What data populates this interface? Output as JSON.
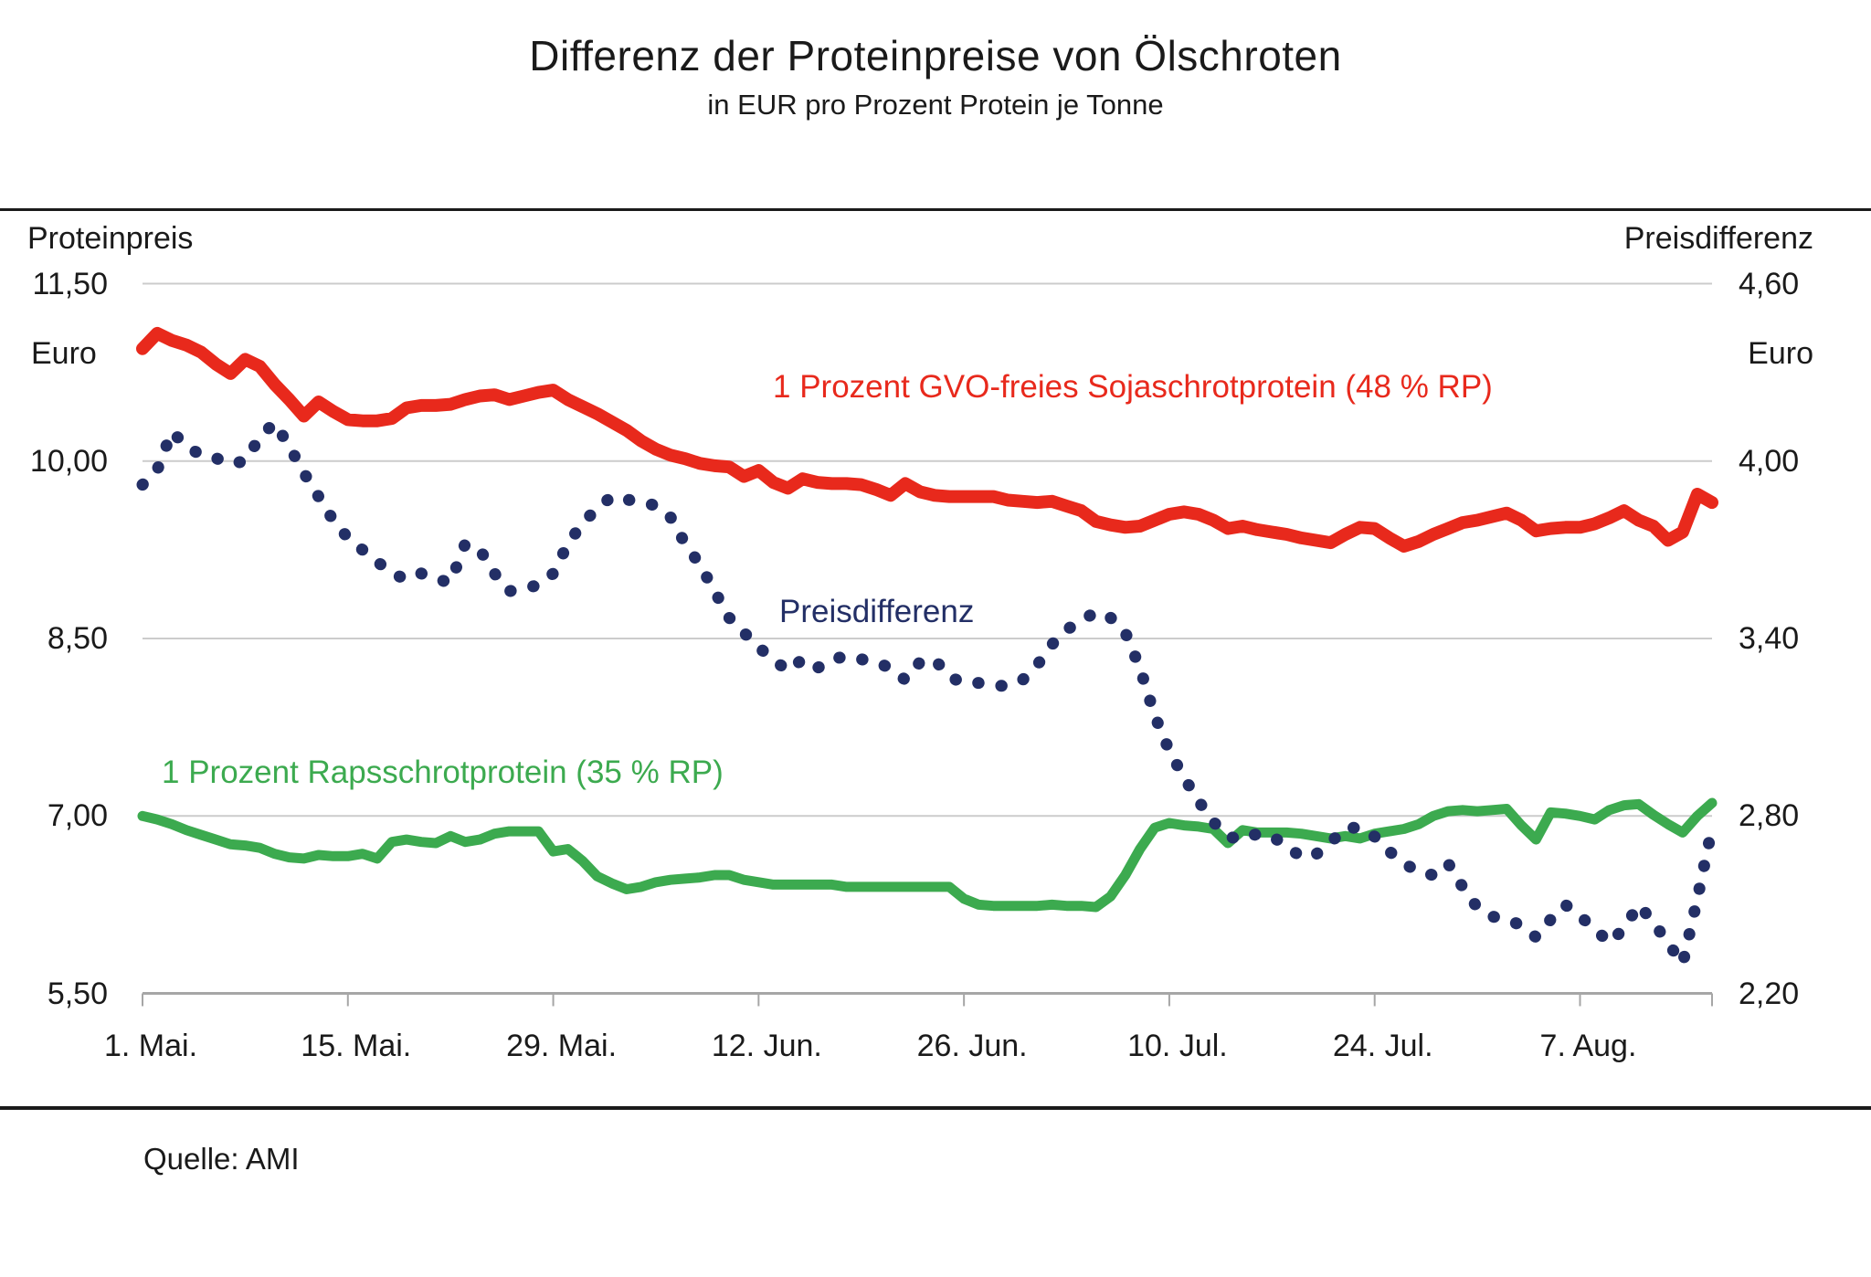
{
  "title": "Differenz der Proteinpreise von Ölschroten",
  "subtitle": "in EUR pro Prozent Protein je Tonne",
  "source": "Quelle: AMI",
  "colors": {
    "soja": "#e8291c",
    "raps": "#3caa4f",
    "diff": "#232f66",
    "grid": "#cccccc",
    "axis": "#a6a6a6",
    "text": "#1a1a1a"
  },
  "chart_data": {
    "type": "line",
    "x_unit": "day",
    "x_range_labels": [
      "1. Mai.",
      "16. Aug."
    ],
    "x_tick_labels": [
      "1. Mai.",
      "15. Mai.",
      "29. Mai.",
      "12. Jun.",
      "26. Jun.",
      "10. Jul.",
      "24. Jul.",
      "7. Aug."
    ],
    "x_tick_day_indices": [
      0,
      14,
      28,
      42,
      56,
      70,
      84,
      98
    ],
    "grid": true,
    "left_axis": {
      "title": "Proteinpreis",
      "unit": "Euro",
      "range": [
        5.5,
        11.5
      ],
      "tick_values": [
        11.5,
        10.0,
        8.5,
        7.0,
        5.5
      ],
      "tick_labels": [
        "11,50",
        "10,00",
        "8,50",
        "7,00",
        "5,50"
      ]
    },
    "right_axis": {
      "title": "Preisdifferenz",
      "unit": "Euro",
      "range": [
        2.2,
        4.6
      ],
      "tick_values": [
        4.6,
        4.0,
        3.4,
        2.8,
        2.2
      ],
      "tick_labels": [
        "4,60",
        "4,00",
        "3,40",
        "2,80",
        "2,20"
      ]
    },
    "series": [
      {
        "name": "1 Prozent GVO-freies Sojaschrotprotein (48 % RP)",
        "axis": "left",
        "style": "solid",
        "color_key": "soja",
        "stroke_width": 14,
        "values": [
          10.95,
          11.08,
          11.02,
          10.98,
          10.92,
          10.82,
          10.74,
          10.86,
          10.8,
          10.65,
          10.52,
          10.38,
          10.5,
          10.42,
          10.35,
          10.34,
          10.34,
          10.36,
          10.45,
          10.47,
          10.47,
          10.48,
          10.52,
          10.55,
          10.56,
          10.52,
          10.55,
          10.58,
          10.6,
          10.52,
          10.46,
          10.4,
          10.33,
          10.26,
          10.17,
          10.1,
          10.05,
          10.02,
          9.98,
          9.96,
          9.95,
          9.87,
          9.92,
          9.82,
          9.77,
          9.85,
          9.82,
          9.81,
          9.81,
          9.8,
          9.76,
          9.71,
          9.81,
          9.74,
          9.71,
          9.7,
          9.7,
          9.7,
          9.7,
          9.67,
          9.66,
          9.65,
          9.66,
          9.62,
          9.58,
          9.49,
          9.46,
          9.44,
          9.45,
          9.5,
          9.55,
          9.57,
          9.55,
          9.5,
          9.43,
          9.45,
          9.42,
          9.4,
          9.38,
          9.35,
          9.33,
          9.31,
          9.38,
          9.44,
          9.43,
          9.35,
          9.28,
          9.32,
          9.38,
          9.43,
          9.48,
          9.5,
          9.53,
          9.56,
          9.5,
          9.41,
          9.43,
          9.44,
          9.44,
          9.47,
          9.52,
          9.58,
          9.5,
          9.45,
          9.33,
          9.4,
          9.72,
          9.65
        ]
      },
      {
        "name": "1 Prozent Rapsschrotprotein (35 % RP)",
        "axis": "left",
        "style": "solid",
        "color_key": "raps",
        "stroke_width": 11,
        "values": [
          7.0,
          6.97,
          6.93,
          6.88,
          6.84,
          6.8,
          6.76,
          6.75,
          6.73,
          6.68,
          6.65,
          6.64,
          6.67,
          6.66,
          6.66,
          6.68,
          6.64,
          6.78,
          6.8,
          6.78,
          6.77,
          6.83,
          6.78,
          6.8,
          6.85,
          6.87,
          6.87,
          6.87,
          6.7,
          6.72,
          6.62,
          6.49,
          6.43,
          6.38,
          6.4,
          6.44,
          6.46,
          6.47,
          6.48,
          6.5,
          6.5,
          6.46,
          6.44,
          6.42,
          6.42,
          6.42,
          6.42,
          6.42,
          6.4,
          6.4,
          6.4,
          6.4,
          6.4,
          6.4,
          6.4,
          6.4,
          6.3,
          6.25,
          6.24,
          6.24,
          6.24,
          6.24,
          6.25,
          6.24,
          6.24,
          6.23,
          6.32,
          6.5,
          6.72,
          6.9,
          6.94,
          6.92,
          6.91,
          6.89,
          6.77,
          6.88,
          6.86,
          6.86,
          6.86,
          6.85,
          6.83,
          6.81,
          6.83,
          6.81,
          6.85,
          6.87,
          6.89,
          6.93,
          7.0,
          7.04,
          7.05,
          7.04,
          7.05,
          7.06,
          6.92,
          6.8,
          7.03,
          7.02,
          7.0,
          6.97,
          7.05,
          7.09,
          7.1,
          7.01,
          6.93,
          6.86,
          7.0,
          7.11
        ]
      },
      {
        "name": "Preisdifferenz",
        "axis": "right",
        "style": "dotted",
        "color_key": "diff",
        "stroke_width": 13,
        "values": [
          3.92,
          3.97,
          4.1,
          4.05,
          4.02,
          4.01,
          3.99,
          4.0,
          4.08,
          4.13,
          4.05,
          3.96,
          3.88,
          3.8,
          3.74,
          3.7,
          3.66,
          3.62,
          3.6,
          3.62,
          3.6,
          3.59,
          3.72,
          3.7,
          3.62,
          3.56,
          3.57,
          3.58,
          3.62,
          3.72,
          3.79,
          3.84,
          3.88,
          3.87,
          3.86,
          3.85,
          3.81,
          3.72,
          3.65,
          3.56,
          3.47,
          3.42,
          3.37,
          3.33,
          3.29,
          3.33,
          3.3,
          3.33,
          3.34,
          3.33,
          3.32,
          3.3,
          3.26,
          3.32,
          3.33,
          3.27,
          3.25,
          3.25,
          3.24,
          3.24,
          3.26,
          3.31,
          3.38,
          3.43,
          3.46,
          3.49,
          3.47,
          3.42,
          3.3,
          3.14,
          3.02,
          2.93,
          2.85,
          2.78,
          2.73,
          2.72,
          2.74,
          2.73,
          2.7,
          2.66,
          2.67,
          2.71,
          2.76,
          2.76,
          2.73,
          2.68,
          2.64,
          2.61,
          2.6,
          2.64,
          2.56,
          2.49,
          2.46,
          2.45,
          2.43,
          2.39,
          2.45,
          2.5,
          2.46,
          2.42,
          2.37,
          2.42,
          2.5,
          2.44,
          2.37,
          2.3,
          2.52,
          2.76
        ]
      }
    ]
  }
}
